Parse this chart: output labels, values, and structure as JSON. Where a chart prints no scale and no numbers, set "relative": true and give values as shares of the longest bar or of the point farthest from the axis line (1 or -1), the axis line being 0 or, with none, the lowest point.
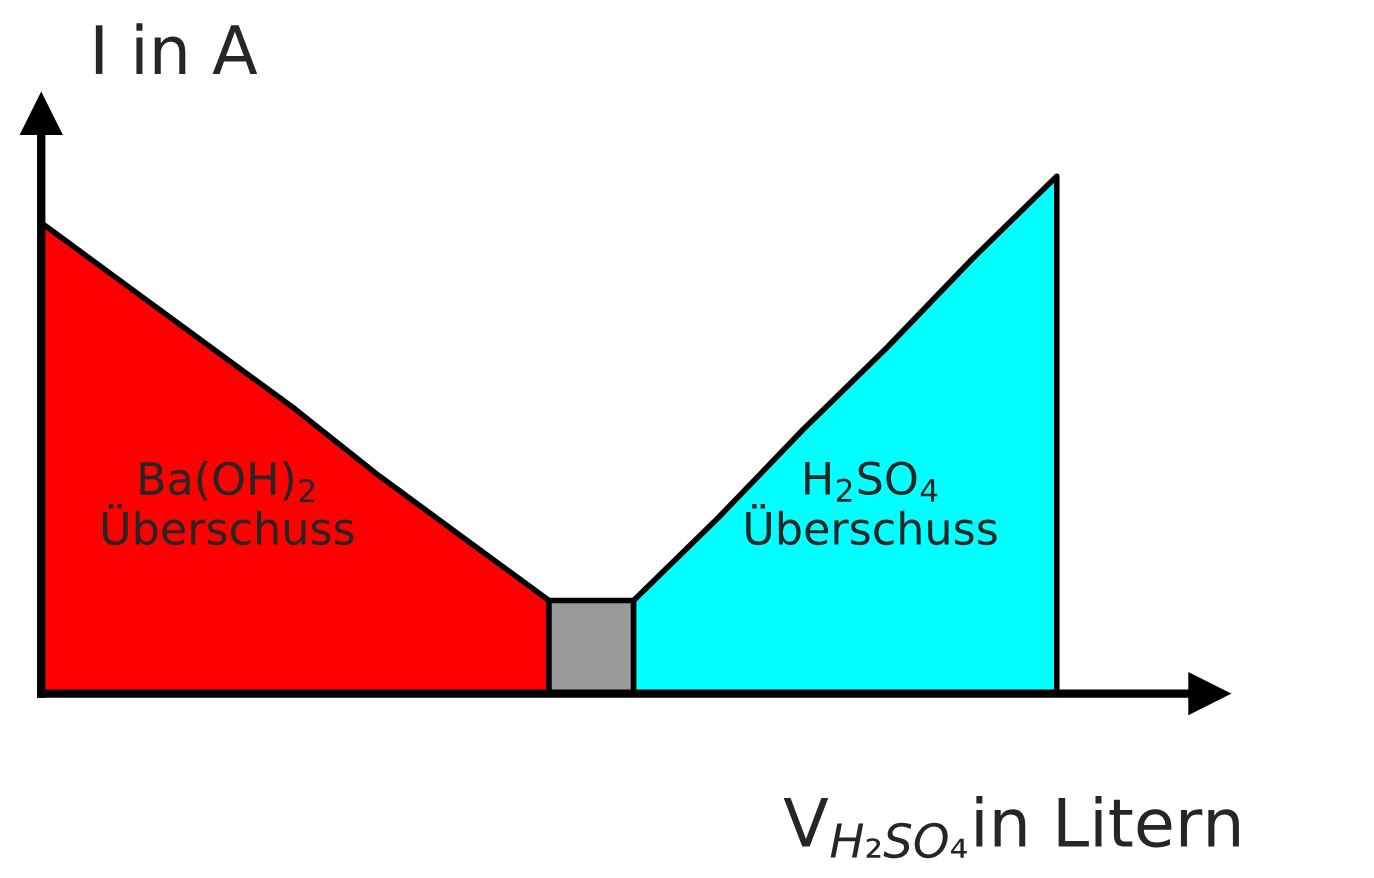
{
  "chart_data": {
    "type": "area",
    "relative": true,
    "ylabel": "I in A",
    "xlabel": "V$_{H₂SO₄}$in Litern",
    "legend": false,
    "categories": [
      null,
      null,
      null,
      null,
      null,
      null,
      null,
      null,
      null,
      null,
      null,
      null,
      null
    ],
    "series": [
      {
        "values": [
          0.91,
          0.79,
          0.67,
          0.55,
          0.42,
          0.3,
          0.18,
          null,
          null,
          null,
          null,
          null,
          null
        ],
        "color": "#ff0000"
      },
      {
        "values": [
          null,
          null,
          null,
          null,
          null,
          null,
          0.18,
          0.18,
          null,
          null,
          null,
          null,
          null
        ],
        "color": "#999999"
      },
      {
        "values": [
          null,
          null,
          null,
          null,
          null,
          null,
          null,
          0.18,
          0.34,
          0.51,
          0.67,
          0.84,
          1.0
        ],
        "color": "#00ffff"
      }
    ],
    "annotations": [
      "Ba(OH)$_{2}$\nÜberschuss",
      "H$_{2}$SO$_{4}$\nÜberschuss"
    ]
  }
}
